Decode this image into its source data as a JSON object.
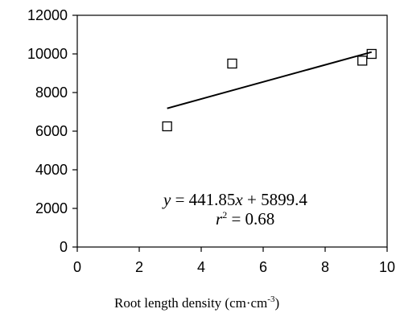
{
  "chart_data": {
    "type": "scatter",
    "title": "",
    "xlabel": "Root length  density (cm·cm",
    "xlabel_sup": "-3",
    "xlabel_close": ")",
    "ylabel": "",
    "xlim": [
      0,
      10
    ],
    "ylim": [
      0,
      12000
    ],
    "x_ticks": [
      "0",
      "2",
      "4",
      "6",
      "8",
      "10"
    ],
    "y_ticks": [
      "0",
      "2000",
      "4000",
      "6000",
      "8000",
      "10000",
      "12000"
    ],
    "grid": false,
    "legend": "none",
    "marker": "open-square",
    "points": [
      {
        "x": 2.9,
        "y": 6250
      },
      {
        "x": 5.0,
        "y": 9500
      },
      {
        "x": 9.2,
        "y": 9650
      },
      {
        "x": 9.5,
        "y": 10000
      }
    ],
    "trendline": {
      "slope": 441.85,
      "intercept": 5899.4,
      "x_range": [
        2.9,
        9.5
      ]
    },
    "annotation": {
      "eq_y": "y",
      "eq_rest": " = 441.85",
      "eq_x": "x",
      "eq_tail": " + 5899.4",
      "r2_r": "r",
      "r2_sup": "2",
      "r2_rest": " = 0.68"
    },
    "colors": {
      "axis": "#000000",
      "marker": "#000000",
      "line": "#000000"
    }
  }
}
